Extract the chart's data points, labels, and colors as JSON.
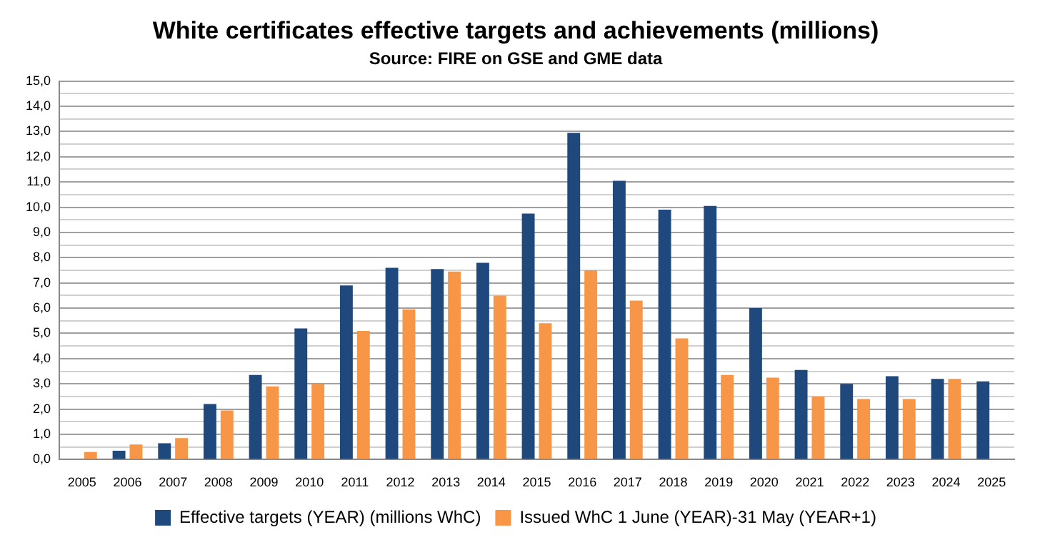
{
  "chart_data": {
    "type": "bar",
    "title": "White certificates effective targets and achievements (millions)",
    "subtitle": "Source: FIRE on GSE and GME data",
    "categories": [
      "2005",
      "2006",
      "2007",
      "2008",
      "2009",
      "2010",
      "2011",
      "2012",
      "2013",
      "2014",
      "2015",
      "2016",
      "2017",
      "2018",
      "2019",
      "2020",
      "2021",
      "2022",
      "2023",
      "2024",
      "2025"
    ],
    "series": [
      {
        "name": "Effective targets (YEAR) (millions WhC)",
        "color": "#1f497d",
        "values": [
          null,
          0.35,
          0.65,
          2.2,
          3.35,
          5.2,
          6.9,
          7.6,
          7.55,
          7.8,
          9.75,
          12.95,
          11.05,
          9.9,
          10.05,
          6.0,
          3.55,
          3.0,
          3.3,
          3.2,
          3.1
        ]
      },
      {
        "name": "Issued WhC 1 June (YEAR)-31 May (YEAR+1)",
        "color": "#f79646",
        "values": [
          0.3,
          0.6,
          0.85,
          1.95,
          2.9,
          3.0,
          5.1,
          5.95,
          7.45,
          6.5,
          5.4,
          7.5,
          6.3,
          4.8,
          3.35,
          3.25,
          2.5,
          2.4,
          2.4,
          3.2,
          null
        ]
      }
    ],
    "ylim": [
      0,
      15
    ],
    "yticks": [
      {
        "value": 0,
        "label": "0,0"
      },
      {
        "value": 0.5,
        "label": null
      },
      {
        "value": 1,
        "label": "1,0"
      },
      {
        "value": 1.5,
        "label": null
      },
      {
        "value": 2,
        "label": "2,0"
      },
      {
        "value": 2.5,
        "label": null
      },
      {
        "value": 3,
        "label": "3,0"
      },
      {
        "value": 3.5,
        "label": null
      },
      {
        "value": 4,
        "label": "4,0"
      },
      {
        "value": 4.5,
        "label": null
      },
      {
        "value": 5,
        "label": "5,0"
      },
      {
        "value": 5.5,
        "label": null
      },
      {
        "value": 6,
        "label": "6,0"
      },
      {
        "value": 6.5,
        "label": null
      },
      {
        "value": 7,
        "label": "7,0"
      },
      {
        "value": 7.5,
        "label": null
      },
      {
        "value": 8,
        "label": "8,0"
      },
      {
        "value": 8.5,
        "label": null
      },
      {
        "value": 9,
        "label": "9,0"
      },
      {
        "value": 9.5,
        "label": null
      },
      {
        "value": 10,
        "label": "10,0"
      },
      {
        "value": 10.5,
        "label": null
      },
      {
        "value": 11,
        "label": "11,0"
      },
      {
        "value": 11.5,
        "label": null
      },
      {
        "value": 12,
        "label": "12,0"
      },
      {
        "value": 12.5,
        "label": null
      },
      {
        "value": 13,
        "label": "13,0"
      },
      {
        "value": 13.5,
        "label": null
      },
      {
        "value": 14,
        "label": "14,0"
      },
      {
        "value": 14.5,
        "label": null
      },
      {
        "value": 15,
        "label": "15,0"
      }
    ],
    "grid": "y",
    "legend": "bottom"
  }
}
